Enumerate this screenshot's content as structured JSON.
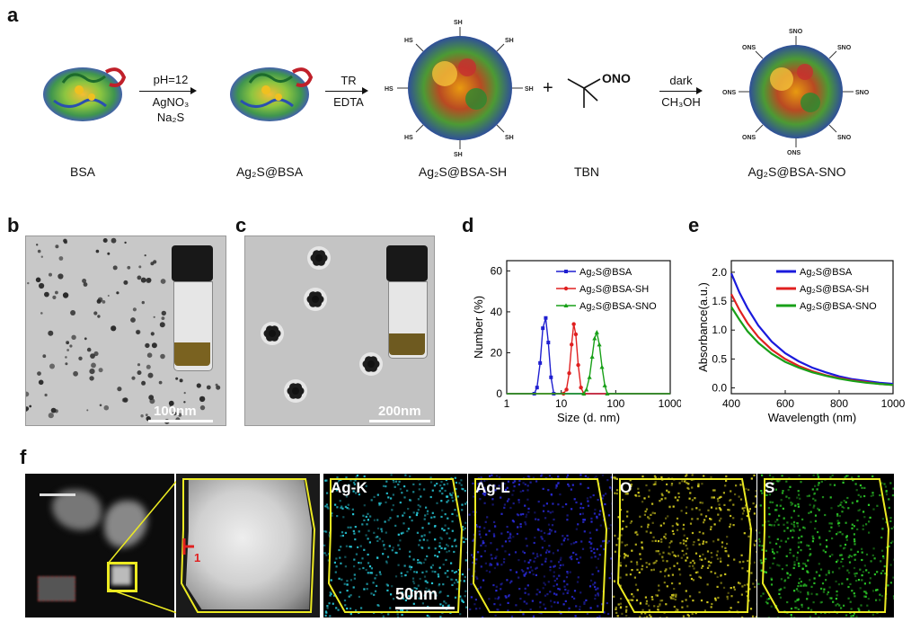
{
  "panels": {
    "a": "a",
    "b": "b",
    "c": "c",
    "d": "d",
    "e": "e",
    "f": "f"
  },
  "scheme": {
    "step1": {
      "top": "pH=12",
      "mid": "AgNO₃",
      "bot": "Na₂S"
    },
    "step2": {
      "top": "TR",
      "bot": "EDTA"
    },
    "step3": {
      "top": "dark",
      "bot": "CH₃OH"
    },
    "plus": "+",
    "tbn_group": "ONO",
    "labels": {
      "bsa": "BSA",
      "ag2s_bsa": "Ag₂S@BSA",
      "ag2s_bsa_sh": "Ag₂S@BSA-SH",
      "tbn": "TBN",
      "ag2s_bsa_sno": "Ag₂S@BSA-SNO"
    },
    "sh_tag": "SH",
    "hs_tag": "HS",
    "sno_tag": "SNO",
    "ons_tag": "ONS"
  },
  "tem": {
    "b_scale": "100nm",
    "c_scale": "200nm"
  },
  "chart_data": [
    {
      "type": "line",
      "panel": "d",
      "xlabel": "Size (d. nm)",
      "ylabel": "Number (%)",
      "xscale": "log",
      "xlim": [
        1,
        1000
      ],
      "ylim": [
        0,
        65
      ],
      "xticks": [
        1,
        10,
        100,
        1000
      ],
      "yticks": [
        0,
        20,
        40,
        60
      ],
      "legend": "top-right",
      "series": [
        {
          "name": "Ag₂S@BSA",
          "color": "#1f1fd0",
          "x": [
            1,
            3.2,
            3.6,
            4.1,
            4.6,
            5.2,
            5.8,
            6.5,
            7.3,
            1000
          ],
          "y": [
            0,
            0,
            3,
            15,
            32,
            37,
            25,
            8,
            0,
            0
          ]
        },
        {
          "name": "Ag₂S@BSA-SH",
          "color": "#e02020",
          "x": [
            1,
            11,
            12.5,
            14,
            15.5,
            17,
            18.5,
            20.5,
            23,
            26,
            1000
          ],
          "y": [
            0,
            0,
            2,
            10,
            24,
            34,
            29,
            14,
            3,
            0,
            0
          ]
        },
        {
          "name": "Ag₂S@BSA-SNO",
          "color": "#18a018",
          "x": [
            1,
            26,
            29,
            33,
            37,
            41,
            45,
            50,
            56,
            63,
            70,
            1000
          ],
          "y": [
            0,
            0,
            2,
            8,
            18,
            27,
            30,
            24,
            13,
            4,
            0,
            0
          ]
        }
      ]
    },
    {
      "type": "line",
      "panel": "e",
      "xlabel": "Wavelength (nm)",
      "ylabel": "Absorbance(a.u.)",
      "xlim": [
        400,
        1000
      ],
      "ylim": [
        -0.1,
        2.2
      ],
      "xticks": [
        400,
        600,
        800,
        1000
      ],
      "yticks": [
        0.0,
        0.5,
        1.0,
        1.5,
        2.0
      ],
      "legend": "top-right",
      "series": [
        {
          "name": "Ag₂S@BSA",
          "color": "#1a1adc",
          "x": [
            400,
            430,
            460,
            500,
            550,
            600,
            650,
            700,
            750,
            800,
            850,
            900,
            950,
            1000
          ],
          "y": [
            1.98,
            1.65,
            1.38,
            1.08,
            0.8,
            0.6,
            0.46,
            0.35,
            0.27,
            0.2,
            0.15,
            0.12,
            0.09,
            0.07
          ]
        },
        {
          "name": "Ag₂S@BSA-SH",
          "color": "#e02020",
          "x": [
            400,
            430,
            460,
            500,
            550,
            600,
            650,
            700,
            750,
            800,
            850,
            900,
            950,
            1000
          ],
          "y": [
            1.62,
            1.35,
            1.12,
            0.88,
            0.66,
            0.5,
            0.38,
            0.29,
            0.22,
            0.17,
            0.13,
            0.1,
            0.07,
            0.05
          ]
        },
        {
          "name": "Ag₂S@BSA-SNO",
          "color": "#18a018",
          "x": [
            400,
            430,
            460,
            500,
            550,
            600,
            650,
            700,
            750,
            800,
            850,
            900,
            950,
            1000
          ],
          "y": [
            1.4,
            1.18,
            0.98,
            0.78,
            0.59,
            0.45,
            0.35,
            0.27,
            0.21,
            0.16,
            0.12,
            0.09,
            0.07,
            0.05
          ]
        }
      ]
    }
  ],
  "mapping": {
    "labels": [
      "Ag-K",
      "Ag-L",
      "O",
      "S"
    ],
    "colors": [
      "#27c8d8",
      "#2a2ad8",
      "#d8d020",
      "#2ed02a"
    ],
    "scale": "50nm",
    "marker": "1"
  }
}
